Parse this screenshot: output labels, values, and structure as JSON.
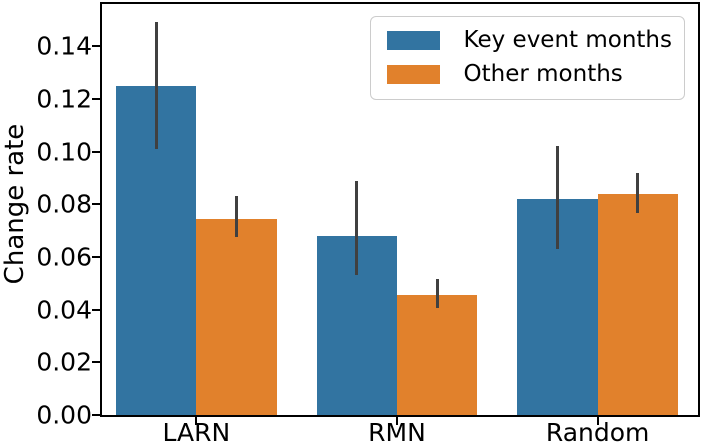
{
  "figure": {
    "background": "#ffffff",
    "spine_color": "#000000",
    "text_color": "#000000"
  },
  "chart_data": {
    "type": "bar",
    "title": "",
    "xlabel": "",
    "ylabel": "Change rate",
    "categories": [
      "LARN",
      "RMN",
      "Random"
    ],
    "series": [
      {
        "name": "Key event months",
        "color": "#3274a1",
        "values": [
          0.125,
          0.068,
          0.082
        ],
        "error_low": [
          0.101,
          0.053,
          0.063
        ],
        "error_high": [
          0.149,
          0.089,
          0.102
        ]
      },
      {
        "name": "Other months",
        "color": "#e1812c",
        "values": [
          0.0745,
          0.0455,
          0.084
        ],
        "error_low": [
          0.0675,
          0.0405,
          0.0765
        ],
        "error_high": [
          0.083,
          0.0515,
          0.092
        ]
      }
    ],
    "errorbar_color": "#404040",
    "bar_width_units": 0.4,
    "xlim": [
      -0.47,
      2.5
    ],
    "ylim": [
      0,
      0.156
    ],
    "yticks": [
      0,
      0.02,
      0.04,
      0.06,
      0.08,
      0.1,
      0.12,
      0.14
    ],
    "ytick_labels": [
      "0.00",
      "0.02",
      "0.04",
      "0.06",
      "0.08",
      "0.10",
      "0.12",
      "0.14"
    ],
    "grid": false,
    "legend": {
      "position": "upper right",
      "border_color": "#cccccc"
    }
  }
}
